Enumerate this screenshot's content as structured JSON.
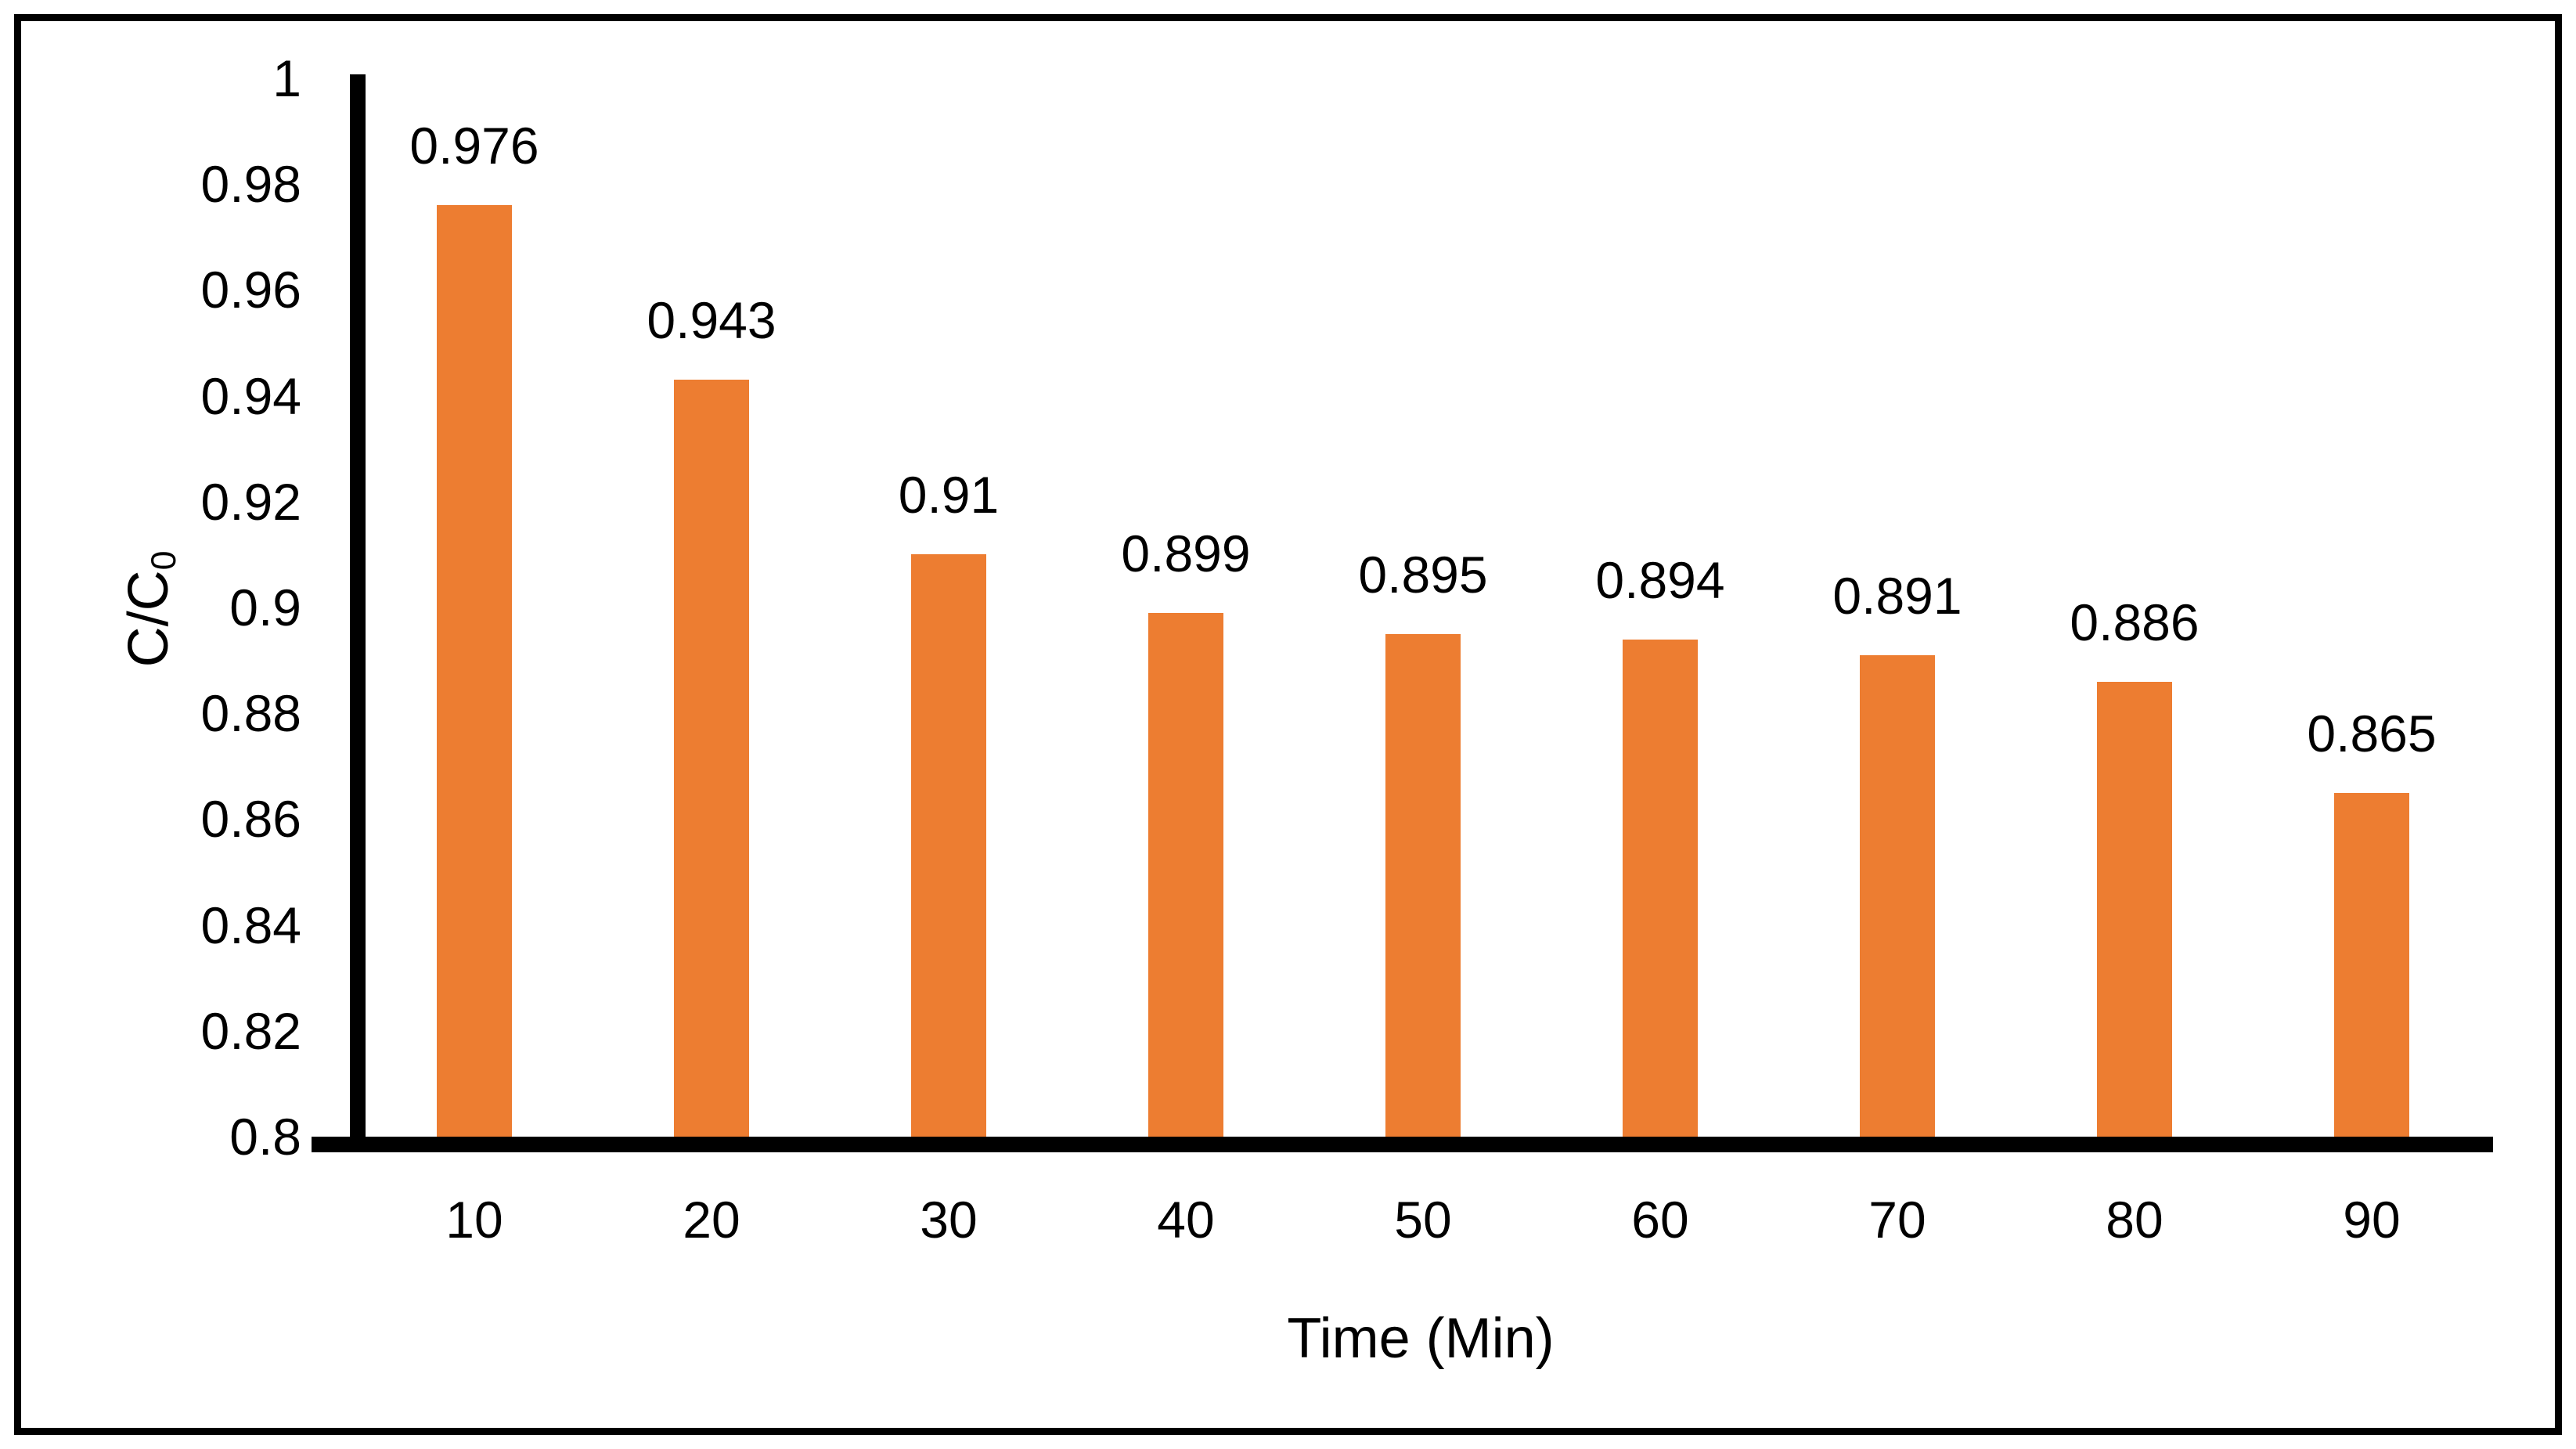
{
  "chart_data": {
    "type": "bar",
    "categories": [
      "10",
      "20",
      "30",
      "40",
      "50",
      "60",
      "70",
      "80",
      "90"
    ],
    "values": [
      0.976,
      0.943,
      0.91,
      0.899,
      0.895,
      0.894,
      0.891,
      0.886,
      0.865
    ],
    "value_labels": [
      "0.976",
      "0.943",
      "0.91",
      "0.899",
      "0.895",
      "0.894",
      "0.891",
      "0.886",
      "0.865"
    ],
    "title": "",
    "xlabel": "Time (Min)",
    "ylabel": "C/C0",
    "ylabel_parts": {
      "main": "C/C",
      "sub": "0"
    },
    "ylim": [
      0.8,
      1.0
    ],
    "ytick_step": 0.02,
    "yticks": [
      {
        "value": 1,
        "label": "1"
      },
      {
        "value": 0.98,
        "label": "0.98"
      },
      {
        "value": 0.96,
        "label": "0.96"
      },
      {
        "value": 0.94,
        "label": "0.94"
      },
      {
        "value": 0.92,
        "label": "0.92"
      },
      {
        "value": 0.9,
        "label": "0.9"
      },
      {
        "value": 0.88,
        "label": "0.88"
      },
      {
        "value": 0.86,
        "label": "0.86"
      },
      {
        "value": 0.84,
        "label": "0.84"
      },
      {
        "value": 0.82,
        "label": "0.82"
      },
      {
        "value": 0.8,
        "label": "0.8"
      }
    ],
    "grid": false,
    "legend": false,
    "data_labels": true,
    "colors": {
      "bar": "#ED7D31",
      "axis": "#000000",
      "text": "#000000",
      "background": "#FFFFFF",
      "border": "#000000"
    }
  }
}
